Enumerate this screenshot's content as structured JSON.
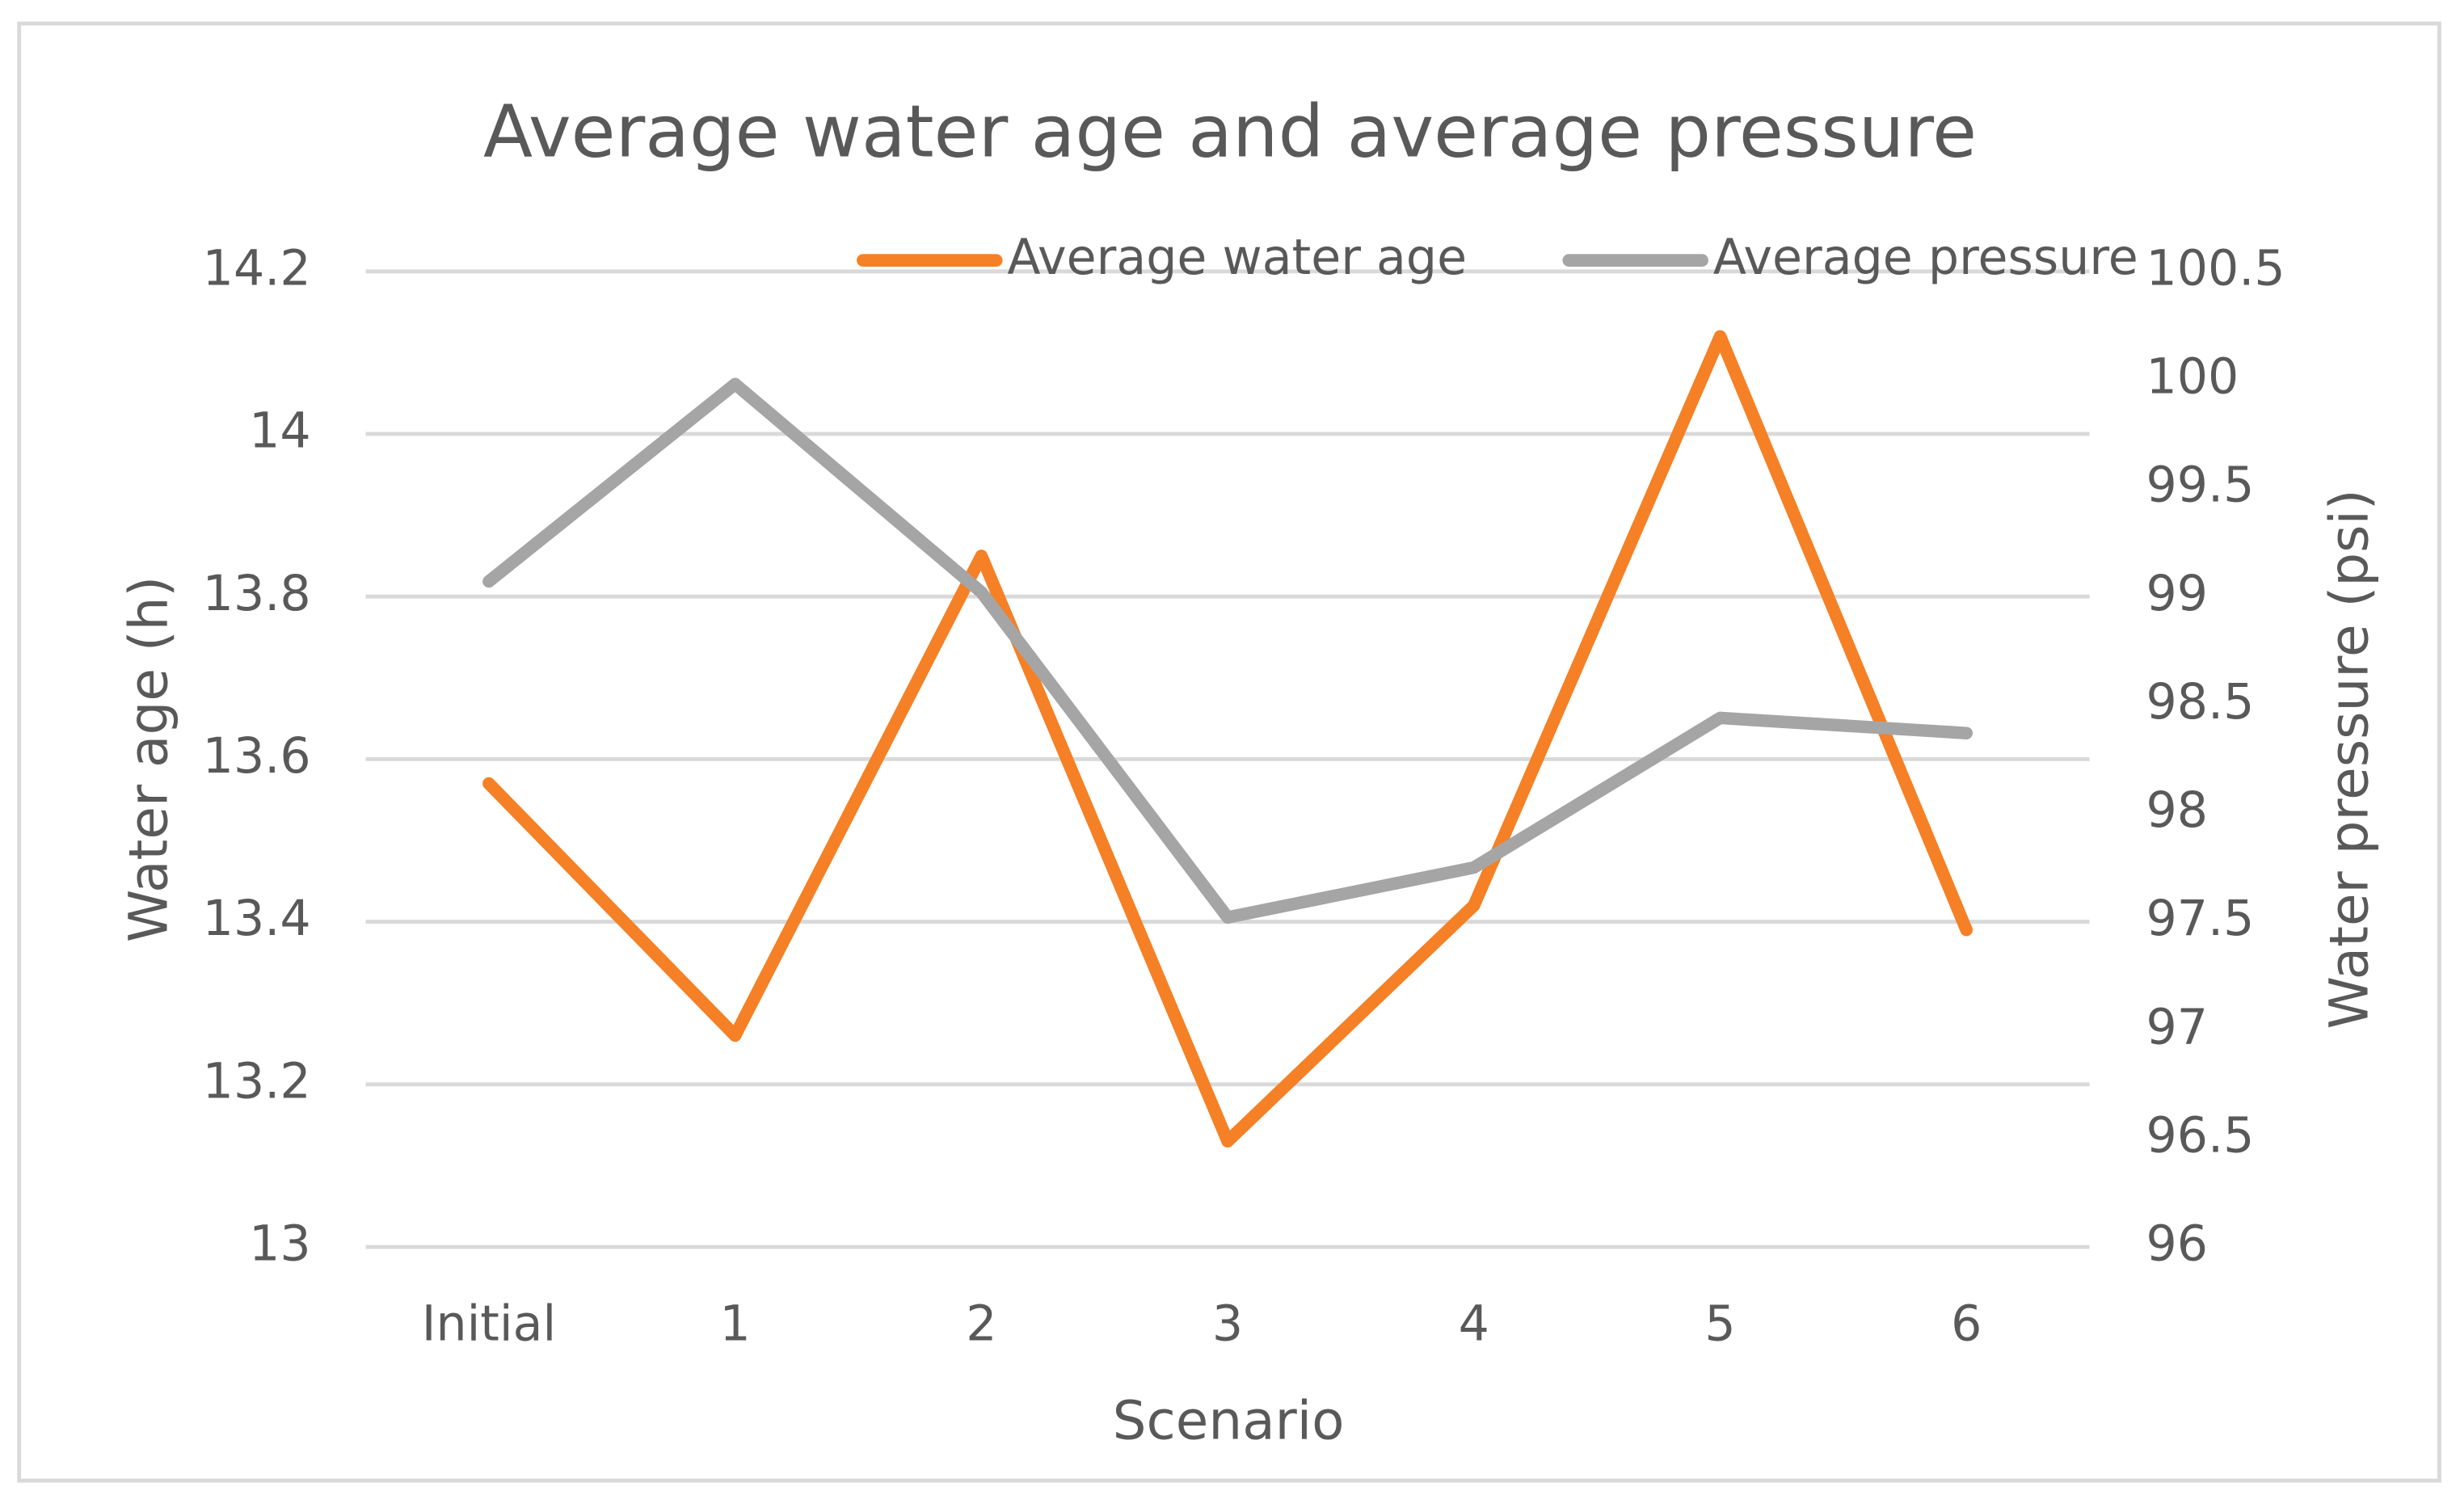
{
  "chart_data": {
    "type": "line",
    "title": "Average water age and average pressure",
    "x_label": "Scenario",
    "y_label": "Water age (h)",
    "y2_label": "Water pressure (psi)",
    "categories": [
      "Initial",
      "1",
      "2",
      "3",
      "4",
      "5",
      "6"
    ],
    "series": [
      {
        "name": "Average water age",
        "color": "#f58025",
        "values": [
          13.57,
          13.26,
          13.85,
          13.13,
          13.42,
          14.12,
          13.39
        ]
      },
      {
        "name": "Average pressure",
        "color": "#a5a5a5",
        "axis": "y2",
        "values": [
          99.07,
          99.98,
          99.02,
          97.52,
          97.75,
          98.44,
          98.37
        ]
      }
    ],
    "ylim": [
      13,
      14.2
    ],
    "yticks": [
      13,
      13.2,
      13.4,
      13.6,
      13.8,
      14,
      14.2
    ],
    "y2lim": [
      96,
      100.5
    ],
    "y2ticks": [
      96,
      96.5,
      97,
      97.5,
      98,
      98.5,
      99,
      99.5,
      100,
      100.5
    ],
    "grid": true,
    "legend": "top"
  }
}
